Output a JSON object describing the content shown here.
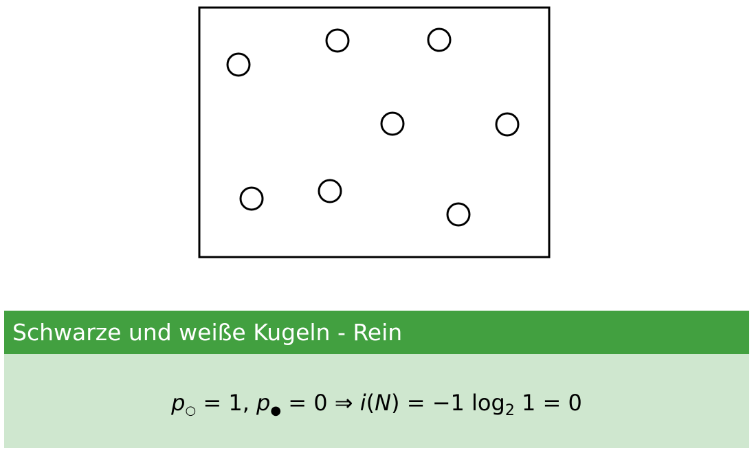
{
  "diagram": {
    "box_border_color": "#000000",
    "ball_type": "white",
    "ball_count": 8
  },
  "block": {
    "title": "Schwarze und weiße Kugeln - Rein",
    "header_color": "#42a040",
    "body_color": "#cfe7cf",
    "formula": {
      "p_white": "p",
      "white_symbol": "○",
      "eq1": " = 1, ",
      "p_black": "p",
      "black_symbol": "●",
      "eq2": " = 0 ⇒ ",
      "info": "i",
      "paren_open": "(",
      "n_var": "N",
      "paren_close": ")",
      "eq3": " = −1 log",
      "log_base": "2",
      "eq4": " 1 = 0"
    }
  }
}
